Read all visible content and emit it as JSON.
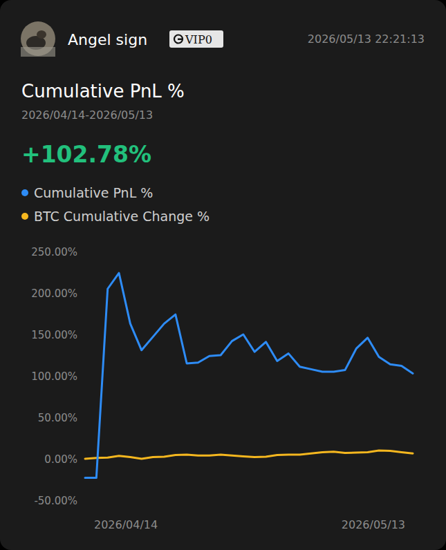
{
  "header": {
    "user_name": "Angel sign",
    "badge": "VIP0",
    "timestamp": "2026/05/13 22:21:13"
  },
  "summary": {
    "value": "+102.78%"
  },
  "chart_data": {
    "type": "line",
    "title": "Cumulative PnL %",
    "subtitle": "2026/04/14-2026/05/13",
    "categories": [
      "2026/04/14",
      null,
      null,
      null,
      null,
      null,
      null,
      null,
      null,
      null,
      null,
      null,
      null,
      null,
      null,
      null,
      null,
      null,
      null,
      null,
      null,
      null,
      null,
      null,
      null,
      null,
      null,
      null,
      null,
      "2026/05/13"
    ],
    "series": [
      {
        "name": "Cumulative PnL %",
        "color": "#2e8cf6",
        "values": [
          -23,
          -23,
          205,
          224,
          163,
          131,
          147,
          163,
          174,
          115,
          116,
          124,
          125,
          142,
          150,
          129,
          141,
          118,
          127,
          111,
          108,
          105,
          105,
          107,
          133,
          146,
          123,
          114,
          112,
          103
        ]
      },
      {
        "name": "BTC Cumulative Change %",
        "color": "#f5b71f",
        "values": [
          0,
          1,
          1.5,
          3.5,
          2,
          0,
          2,
          2.5,
          4.5,
          5,
          4,
          4,
          5,
          4,
          3,
          2,
          2.5,
          4.5,
          5,
          5,
          6.5,
          8,
          8.5,
          7,
          7.5,
          8,
          10,
          9.5,
          8,
          6.5
        ]
      }
    ],
    "ylim": [
      -50,
      250
    ],
    "yticks": [
      {
        "value": -50,
        "label": "-50.00%"
      },
      {
        "value": 0,
        "label": "0.00%"
      },
      {
        "value": 50,
        "label": "50.00%"
      },
      {
        "value": 100,
        "label": "100.00%"
      },
      {
        "value": 150,
        "label": "150.00%"
      },
      {
        "value": 200,
        "label": "200.00%"
      },
      {
        "value": 250,
        "label": "250.00%"
      }
    ],
    "grid": false,
    "legend": "top"
  }
}
